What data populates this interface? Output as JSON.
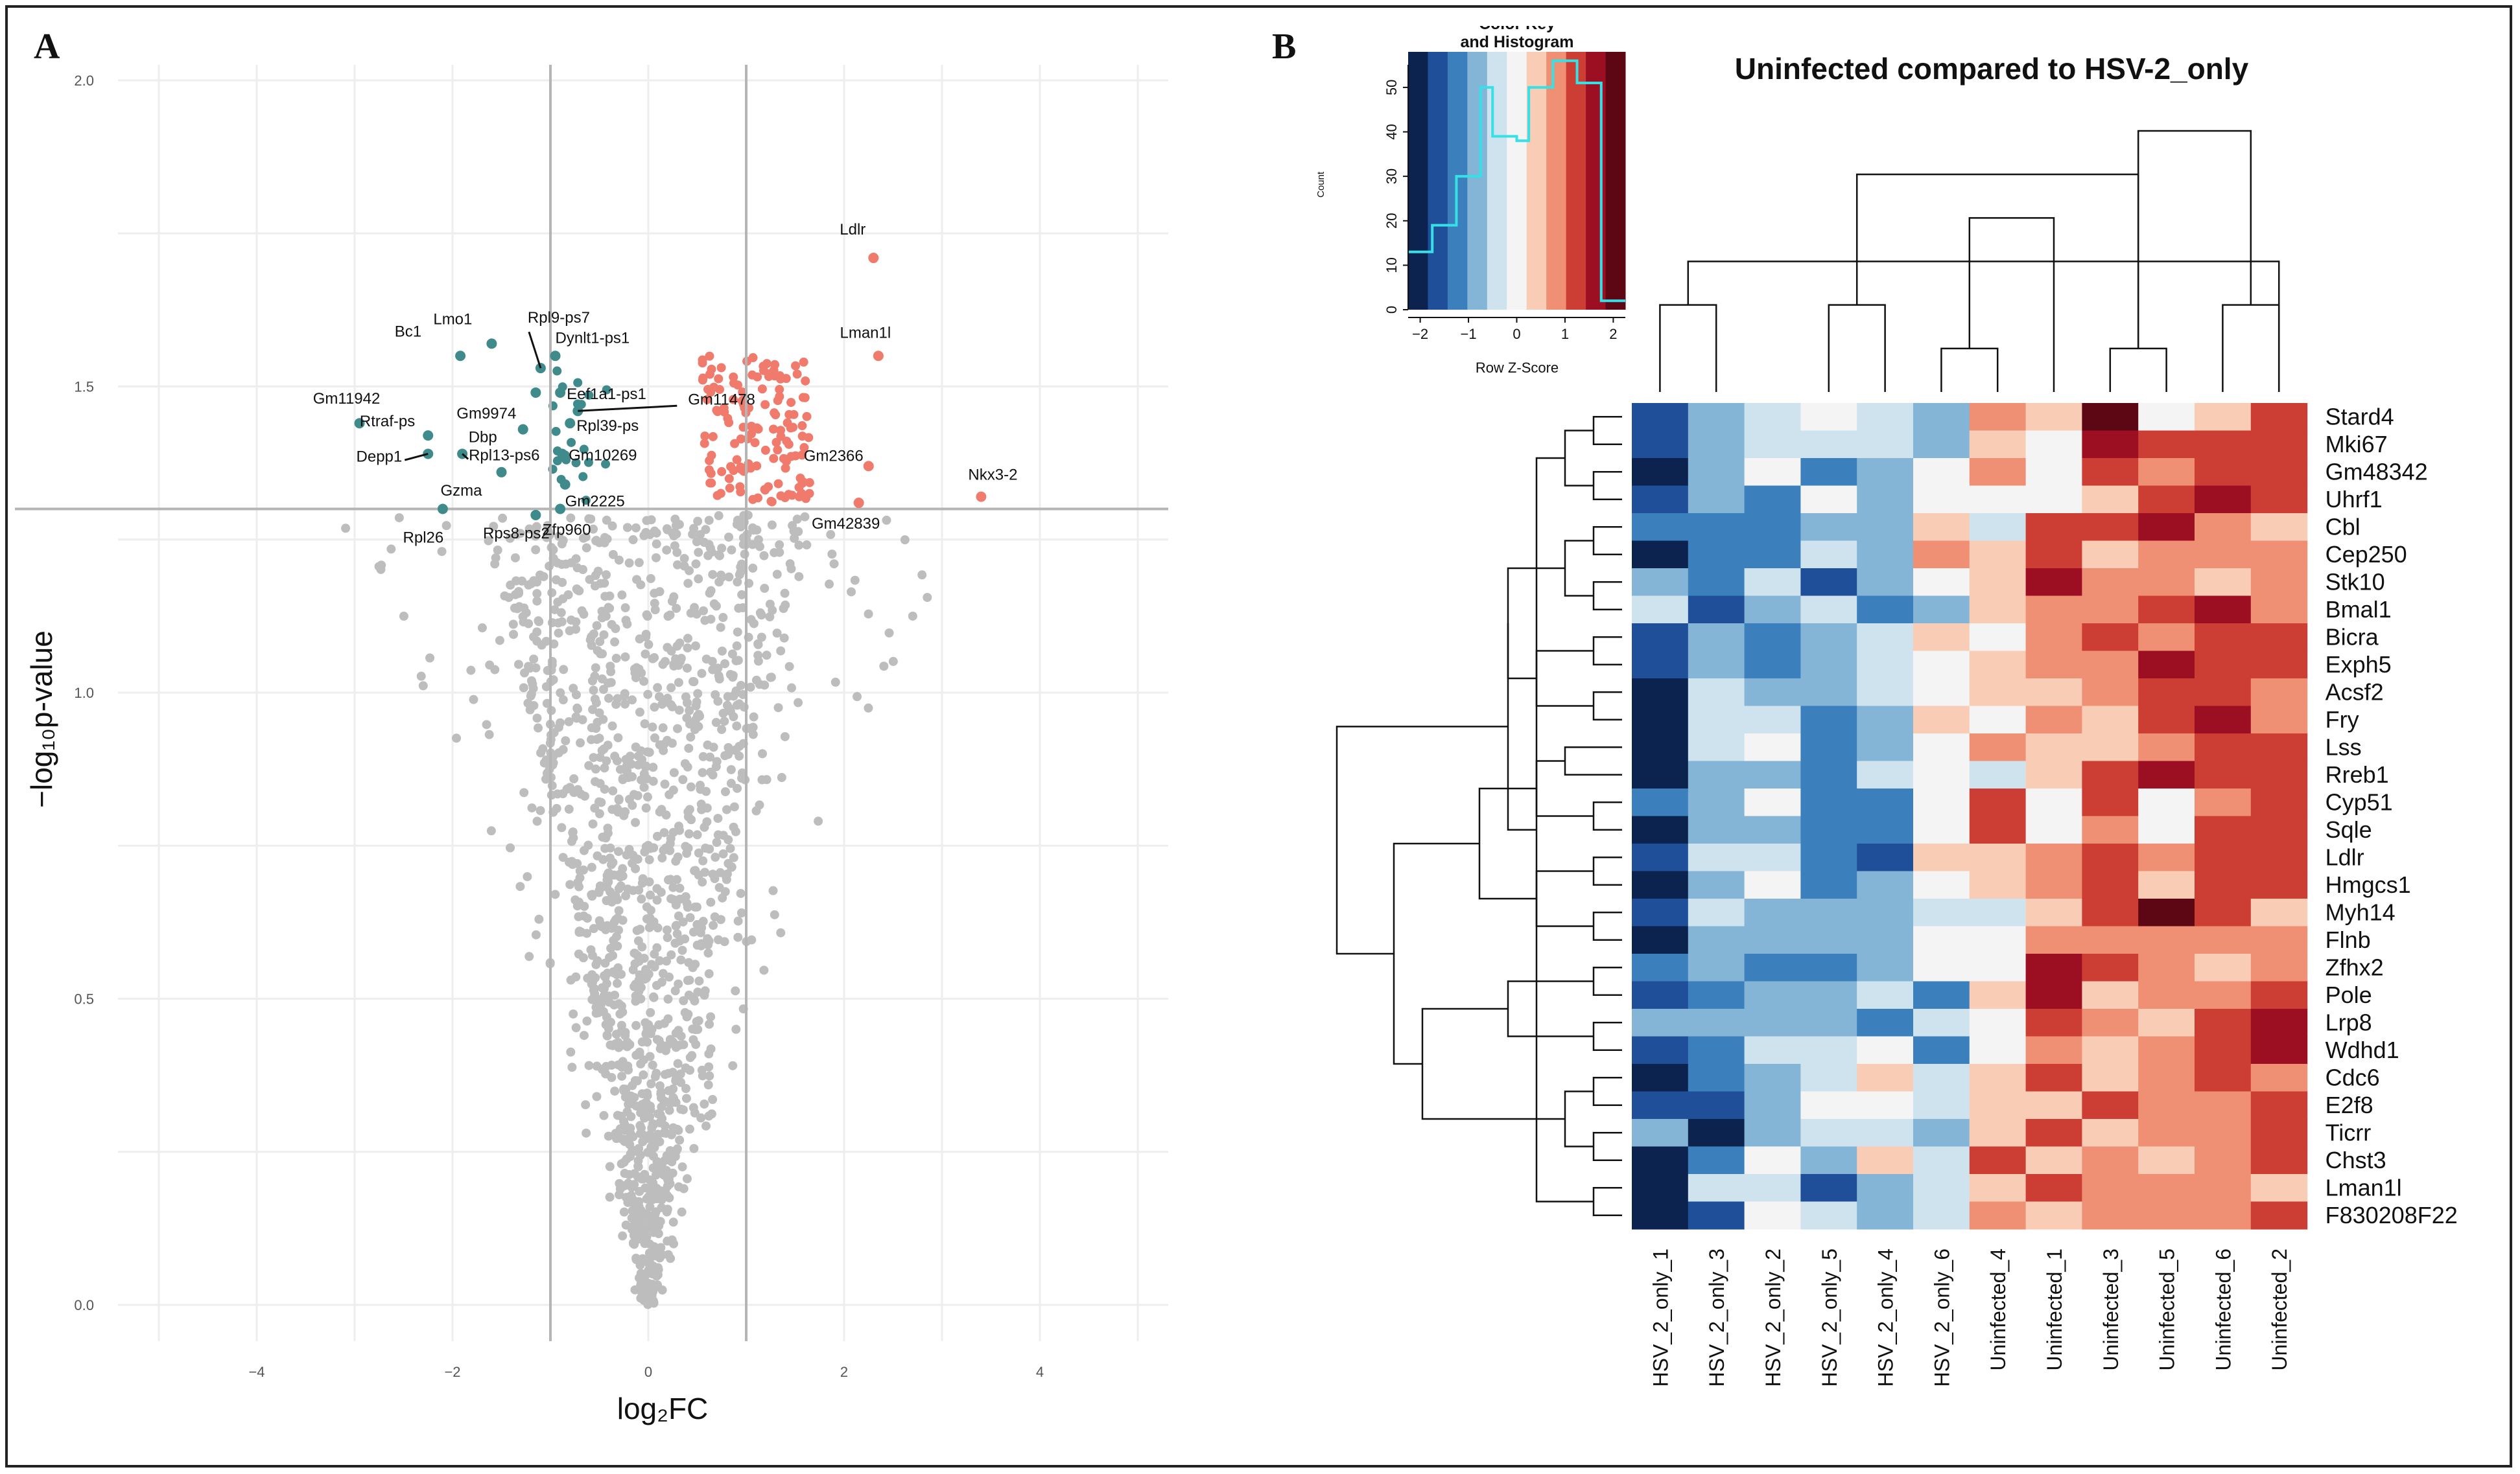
{
  "chart_data": [
    {
      "type": "scatter",
      "panel": "A",
      "panel_label": "A",
      "title": "",
      "xlabel": "log₂FC",
      "ylabel": "−log₁₀p-value",
      "xlim": [
        -5,
        5
      ],
      "ylim": [
        0,
        2.1
      ],
      "x_ticks": [
        "−4",
        "−2",
        "0",
        "2",
        "4"
      ],
      "x_tick_values": [
        -4,
        -2,
        0,
        2,
        4
      ],
      "y_ticks": [
        "0.0",
        "0.5",
        "1.0",
        "1.5",
        "2.0"
      ],
      "y_tick_values": [
        0.0,
        0.5,
        1.0,
        1.5,
        2.0
      ],
      "thresholds": {
        "log2fc": [
          -1,
          1
        ],
        "neg_log10_p": 1.3
      },
      "colors": {
        "nonsignificant": "#bdbdbd",
        "down": "#3f8b8c",
        "up": "#f07a6c",
        "threshold": "#b5b5b5",
        "grid": "#eeeeee"
      },
      "labeled_points": [
        {
          "label": "Ldlr",
          "x": 2.3,
          "y": 1.71,
          "group": "up"
        },
        {
          "label": "Lman1l",
          "x": 2.35,
          "y": 1.55,
          "group": "up"
        },
        {
          "label": "Gm2366",
          "x": 2.25,
          "y": 1.37,
          "group": "up"
        },
        {
          "label": "Nkx3-2",
          "x": 3.4,
          "y": 1.32,
          "group": "up"
        },
        {
          "label": "Gm42839",
          "x": 2.15,
          "y": 1.31,
          "group": "up"
        },
        {
          "label": "Gm11942",
          "x": -2.95,
          "y": 1.44,
          "group": "down"
        },
        {
          "label": "Bc1",
          "x": -1.92,
          "y": 1.55,
          "group": "down"
        },
        {
          "label": "Lmo1",
          "x": -1.6,
          "y": 1.57,
          "group": "down"
        },
        {
          "label": "Rpl9-ps7",
          "x": -1.1,
          "y": 1.53,
          "group": "down"
        },
        {
          "label": "Dynlt1-ps1",
          "x": -0.95,
          "y": 1.55,
          "group": "down"
        },
        {
          "label": "Gm9974",
          "x": -1.15,
          "y": 1.49,
          "group": "down"
        },
        {
          "label": "Eef1a1-ps1",
          "x": -0.9,
          "y": 1.49,
          "group": "down"
        },
        {
          "label": "Gm11478",
          "x": -0.72,
          "y": 1.46,
          "group": "down"
        },
        {
          "label": "Dbp",
          "x": -1.28,
          "y": 1.43,
          "group": "down"
        },
        {
          "label": "Rpl39-ps",
          "x": -0.8,
          "y": 1.44,
          "group": "down"
        },
        {
          "label": "Rtraf-ps",
          "x": -2.25,
          "y": 1.42,
          "group": "down"
        },
        {
          "label": "Depp1",
          "x": -2.25,
          "y": 1.39,
          "group": "down"
        },
        {
          "label": "Rpl13-ps6",
          "x": -1.9,
          "y": 1.39,
          "group": "down"
        },
        {
          "label": "Gm10269",
          "x": -0.88,
          "y": 1.39,
          "group": "down"
        },
        {
          "label": "Gzma",
          "x": -1.5,
          "y": 1.36,
          "group": "down"
        },
        {
          "label": "Gm2225",
          "x": -0.85,
          "y": 1.34,
          "group": "down"
        },
        {
          "label": "Rpl26",
          "x": -2.1,
          "y": 1.3,
          "group": "down"
        },
        {
          "label": "Rps8-ps2",
          "x": -1.15,
          "y": 1.29,
          "group": "down"
        },
        {
          "label": "Zfp960",
          "x": -0.9,
          "y": 1.3,
          "group": "down"
        }
      ]
    },
    {
      "type": "heatmap",
      "panel": "B",
      "panel_label": "B",
      "title": "Uninfected compared to HSV-2_only",
      "columns": [
        "HSV_2_only_1",
        "HSV_2_only_3",
        "HSV_2_only_2",
        "HSV_2_only_5",
        "HSV_2_only_4",
        "HSV_2_only_6",
        "Uninfected_4",
        "Uninfected_1",
        "Uninfected_3",
        "Uninfected_5",
        "Uninfected_6",
        "Uninfected_2"
      ],
      "rows": [
        "Stard4",
        "Mki67",
        "Gm48342",
        "Uhrf1",
        "Cbl",
        "Cep250",
        "Stk10",
        "Bmal1",
        "Bicra",
        "Exph5",
        "Acsf2",
        "Fry",
        "Lss",
        "Rreb1",
        "Cyp51",
        "Sqle",
        "Ldlr",
        "Hmgcs1",
        "Myh14",
        "Flnb",
        "Zfhx2",
        "Pole",
        "Lrp8",
        "Wdhd1",
        "Cdc6",
        "E2f8",
        "Ticrr",
        "Chst3",
        "Lman1l",
        "F830208F22"
      ],
      "z_levels": [
        -2.25,
        -1.75,
        -1.25,
        -0.75,
        -0.25,
        0.25,
        0.75,
        1.25,
        1.75,
        2.25
      ],
      "palette": [
        "#0c2350",
        "#1f4f98",
        "#3b80bd",
        "#84b5d7",
        "#cfe3ef",
        "#f4f4f4",
        "#f9ccb6",
        "#ef8f73",
        "#cc3d33",
        "#9c0f23",
        "#5c0713"
      ],
      "values": [
        [
          1,
          3,
          4,
          5,
          4,
          3,
          7,
          6,
          10,
          5,
          6,
          8
        ],
        [
          1,
          3,
          4,
          4,
          4,
          3,
          6,
          5,
          9,
          8,
          8,
          8
        ],
        [
          0,
          3,
          5,
          2,
          3,
          5,
          7,
          5,
          8,
          7,
          8,
          8
        ],
        [
          1,
          3,
          2,
          5,
          3,
          5,
          5,
          5,
          6,
          8,
          9,
          8
        ],
        [
          2,
          2,
          2,
          3,
          3,
          6,
          4,
          8,
          8,
          9,
          7,
          6
        ],
        [
          0,
          2,
          2,
          4,
          3,
          7,
          6,
          8,
          6,
          7,
          7,
          7
        ],
        [
          3,
          2,
          4,
          1,
          3,
          5,
          6,
          9,
          7,
          7,
          6,
          7
        ],
        [
          4,
          1,
          3,
          4,
          2,
          3,
          6,
          7,
          7,
          8,
          9,
          7
        ],
        [
          1,
          3,
          2,
          3,
          4,
          6,
          5,
          7,
          8,
          7,
          8,
          8
        ],
        [
          1,
          3,
          2,
          3,
          4,
          5,
          6,
          7,
          7,
          9,
          8,
          8
        ],
        [
          0,
          4,
          3,
          3,
          4,
          5,
          6,
          6,
          7,
          8,
          8,
          7
        ],
        [
          0,
          4,
          4,
          2,
          3,
          6,
          5,
          7,
          6,
          8,
          9,
          7
        ],
        [
          0,
          4,
          5,
          2,
          3,
          5,
          7,
          6,
          6,
          7,
          8,
          8
        ],
        [
          0,
          3,
          3,
          2,
          4,
          5,
          4,
          6,
          8,
          9,
          8,
          8
        ],
        [
          2,
          3,
          5,
          2,
          2,
          5,
          8,
          5,
          8,
          5,
          7,
          8
        ],
        [
          0,
          3,
          3,
          2,
          2,
          5,
          8,
          5,
          7,
          5,
          8,
          8
        ],
        [
          1,
          4,
          4,
          2,
          1,
          6,
          6,
          7,
          8,
          7,
          8,
          8
        ],
        [
          0,
          3,
          5,
          2,
          3,
          5,
          6,
          7,
          8,
          6,
          8,
          8
        ],
        [
          1,
          4,
          3,
          3,
          3,
          4,
          4,
          6,
          8,
          10,
          8,
          6
        ],
        [
          0,
          3,
          3,
          3,
          3,
          5,
          5,
          7,
          7,
          7,
          7,
          7
        ],
        [
          2,
          3,
          2,
          2,
          3,
          5,
          5,
          9,
          8,
          7,
          6,
          7
        ],
        [
          1,
          2,
          3,
          3,
          4,
          2,
          6,
          9,
          6,
          7,
          7,
          8
        ],
        [
          3,
          3,
          3,
          3,
          2,
          4,
          5,
          8,
          7,
          6,
          8,
          9
        ],
        [
          1,
          2,
          4,
          4,
          5,
          2,
          5,
          7,
          6,
          7,
          8,
          9
        ],
        [
          0,
          2,
          3,
          4,
          6,
          4,
          6,
          8,
          6,
          7,
          8,
          7
        ],
        [
          1,
          1,
          3,
          5,
          5,
          4,
          6,
          6,
          8,
          7,
          7,
          8
        ],
        [
          3,
          0,
          3,
          4,
          4,
          3,
          6,
          8,
          6,
          7,
          7,
          8
        ],
        [
          0,
          2,
          5,
          3,
          6,
          4,
          8,
          6,
          7,
          6,
          7,
          8
        ],
        [
          0,
          4,
          4,
          1,
          3,
          4,
          6,
          8,
          7,
          7,
          7,
          6
        ],
        [
          0,
          1,
          5,
          4,
          3,
          4,
          7,
          6,
          7,
          7,
          7,
          8
        ]
      ],
      "color_key": {
        "title_line1": "Color Key",
        "title_line2": "and Histogram",
        "xlabel": "Row Z-Score",
        "ylabel": "Count",
        "x_ticks": [
          "−2",
          "−1",
          "0",
          "1",
          "2"
        ],
        "x_tick_values": [
          -2,
          -1,
          0,
          1,
          2
        ],
        "y_ticks": [
          "0",
          "10",
          "20",
          "30",
          "40",
          "50"
        ],
        "y_tick_values": [
          0,
          10,
          20,
          30,
          40,
          50
        ],
        "y_max": 58,
        "histogram_edges": [
          -2.25,
          -1.75,
          -1.25,
          -0.75,
          -0.5,
          -0.25,
          0,
          0.25,
          0.75,
          1.25,
          1.75,
          2.25
        ],
        "histogram_counts": [
          13,
          19,
          30,
          50,
          39,
          39,
          38,
          50,
          56,
          51,
          2
        ],
        "histogram_color": "#35e0e6"
      },
      "col_dendrogram": [
        [
          0,
          1,
          2
        ],
        [
          4,
          3,
          2
        ],
        [
          6,
          5,
          1
        ],
        [
          9,
          8,
          1
        ],
        [
          11,
          10,
          2
        ],
        [
          12,
          11,
          3
        ],
        [
          14,
          7,
          4
        ],
        [
          15,
          13,
          5
        ],
        [
          16,
          15,
          6
        ]
      ],
      "row_dendrogram": [
        [
          0,
          1,
          1
        ],
        [
          3,
          2,
          1
        ],
        [
          4,
          5,
          1
        ],
        [
          6,
          7,
          1
        ],
        [
          8,
          9,
          1
        ],
        [
          10,
          11,
          1
        ],
        [
          13,
          12,
          2
        ],
        [
          14,
          15,
          1
        ],
        [
          16,
          17,
          1
        ],
        [
          18,
          19,
          1
        ],
        [
          20,
          21,
          1
        ],
        [
          22,
          23,
          1
        ],
        [
          24,
          25,
          1
        ],
        [
          26,
          27,
          1
        ],
        [
          28,
          29,
          1
        ],
        [
          30,
          31,
          2
        ],
        [
          32,
          33,
          2
        ],
        [
          34,
          35,
          3
        ],
        [
          36,
          37,
          3
        ],
        [
          38,
          39,
          3
        ],
        [
          40,
          41,
          4
        ],
        [
          42,
          43,
          2
        ],
        [
          44,
          45,
          3
        ],
        [
          46,
          47,
          4
        ],
        [
          48,
          49,
          5
        ],
        [
          50,
          51,
          7
        ],
        [
          52,
          53,
          4
        ],
        [
          54,
          55,
          8
        ],
        [
          56,
          57,
          10
        ]
      ]
    }
  ]
}
